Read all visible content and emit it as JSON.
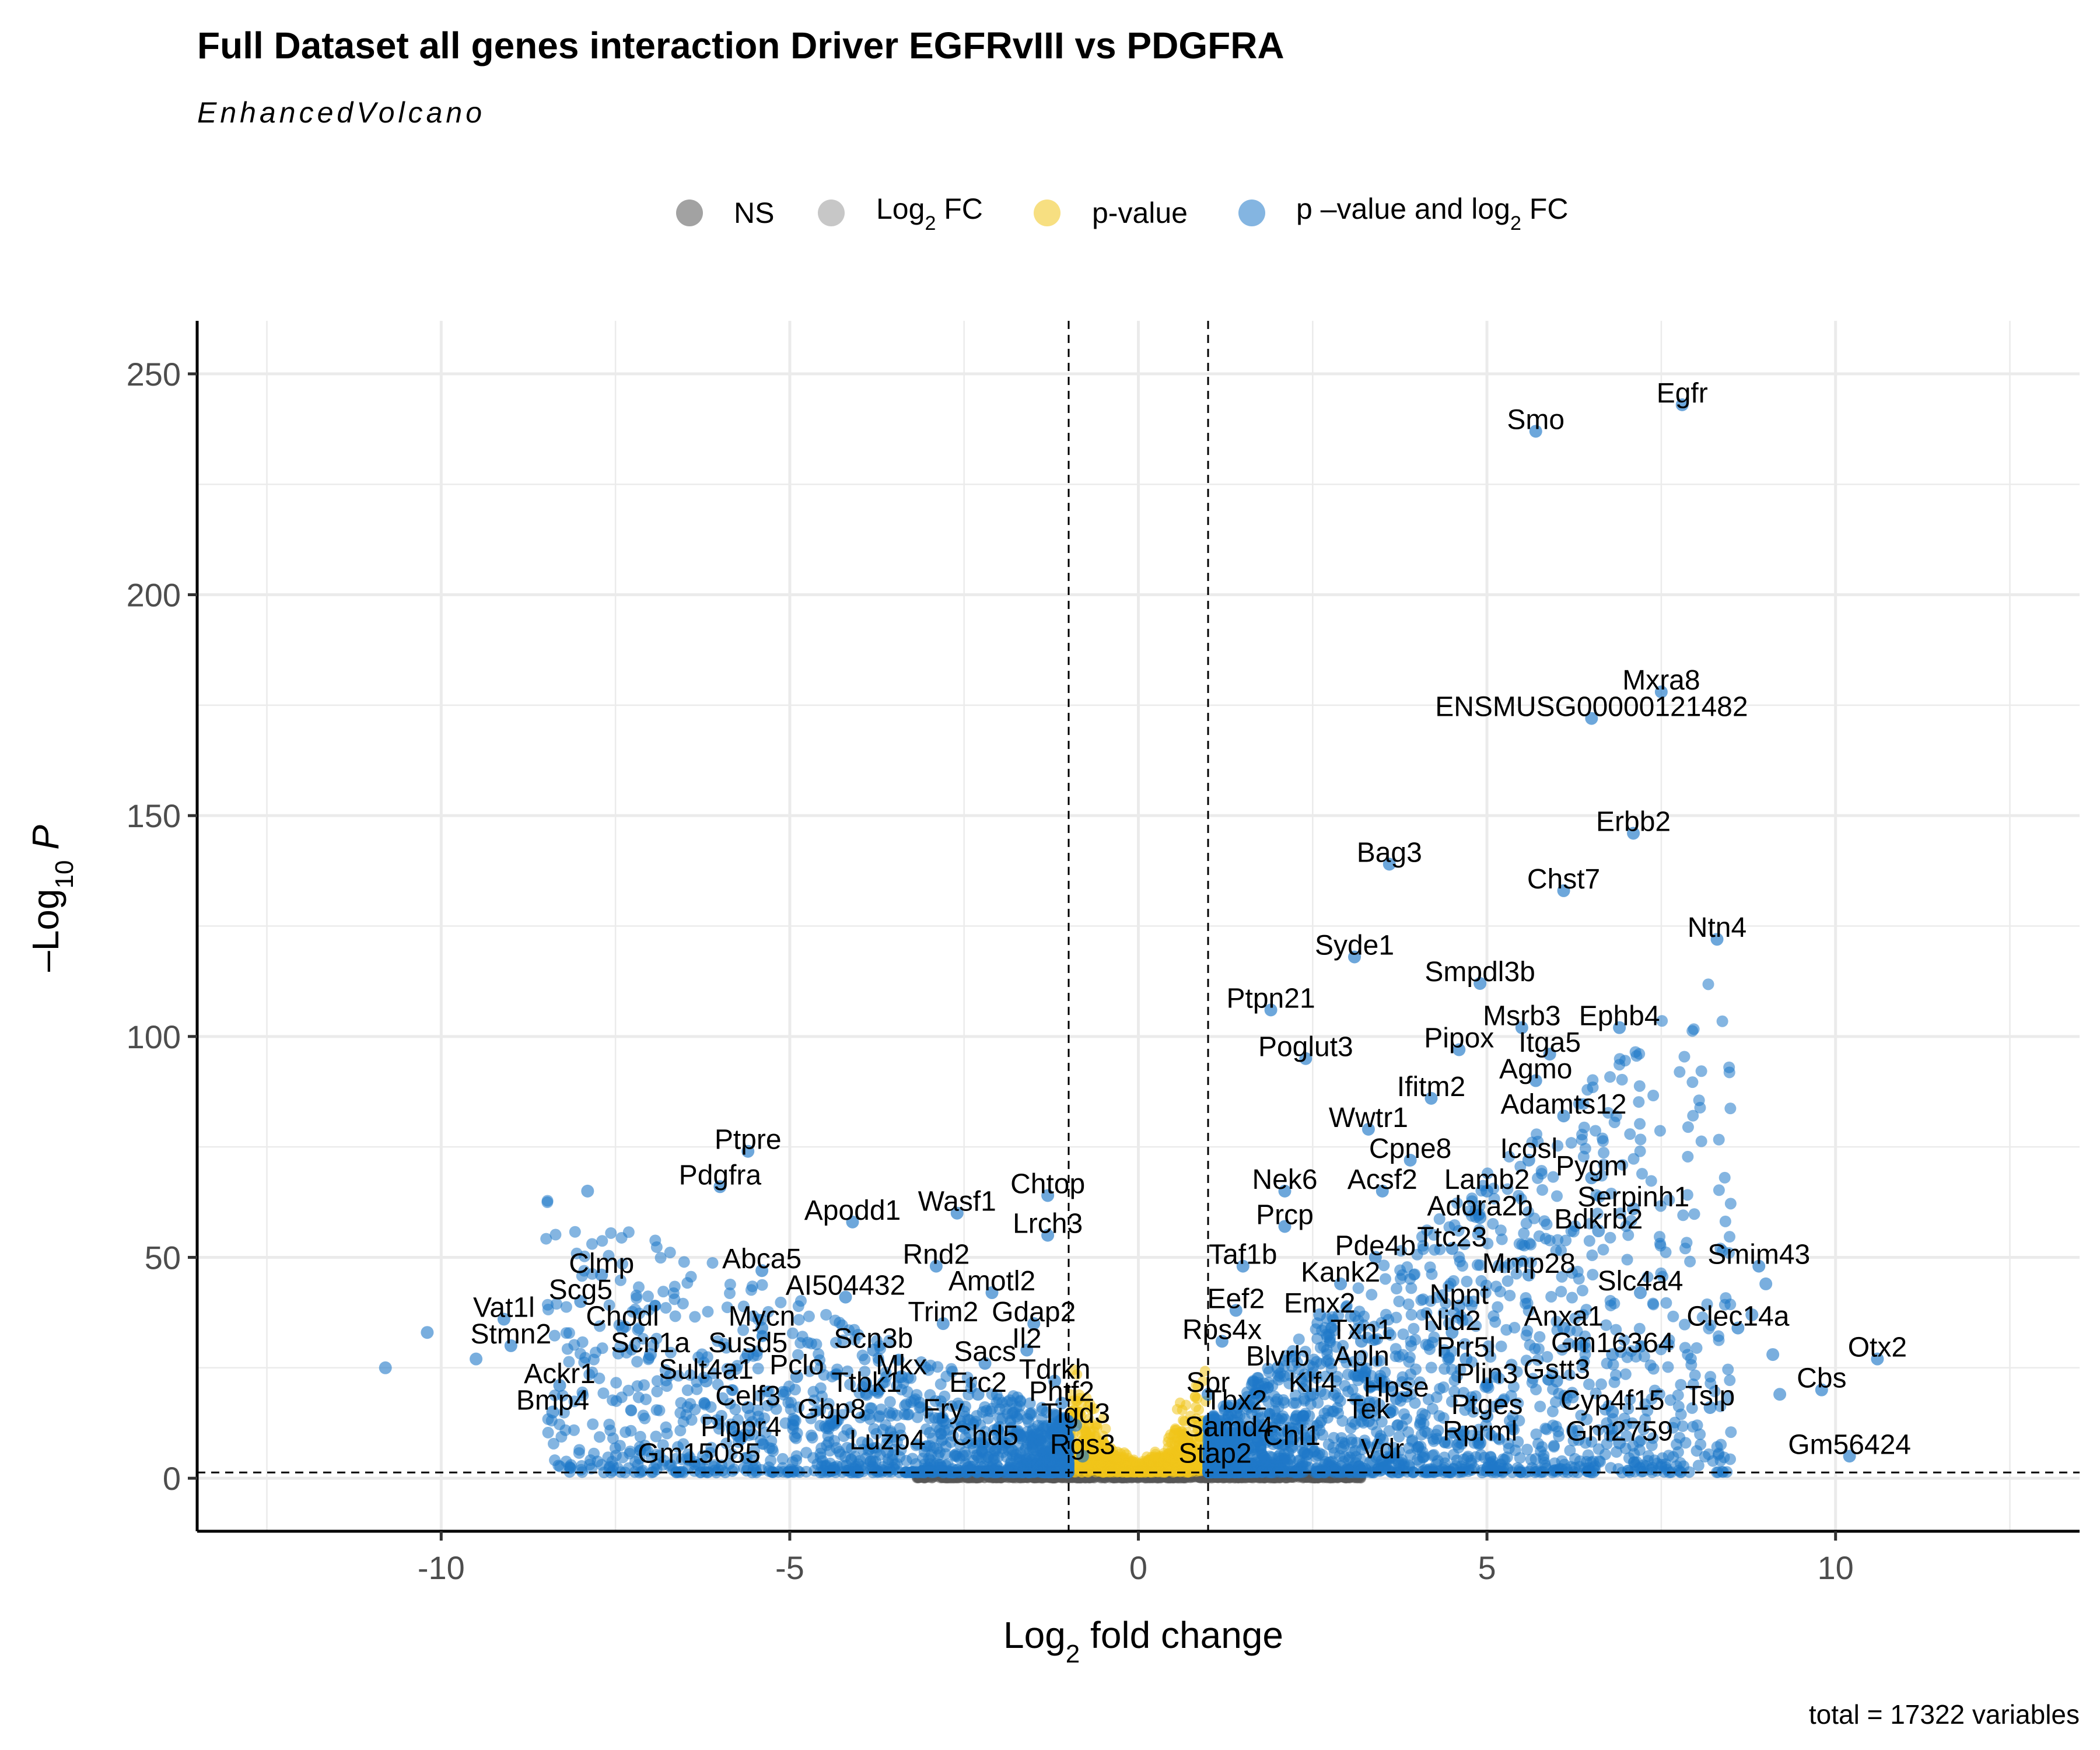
{
  "chart_data": {
    "type": "scatter",
    "title": "Full Dataset all genes interaction Driver EGFRvIII vs PDGFRA",
    "subtitle": "EnhancedVolcano",
    "xlabel": "Log2 fold change",
    "ylabel": "-Log10 P",
    "caption": "total = 17322 variables",
    "xlim": [
      -13.5,
      13.5
    ],
    "ylim": [
      -12,
      262
    ],
    "x_ticks": [
      "-10",
      "-5",
      "0",
      "5",
      "10"
    ],
    "y_ticks": [
      "0",
      "50",
      "100",
      "150",
      "200",
      "250"
    ],
    "fc_cutoff": 1,
    "p_cutoff_log10": 1.3,
    "grid": true,
    "legend_position": "top",
    "legend": [
      {
        "name": "NS",
        "color": "#555555"
      },
      {
        "name": "Log2 FC",
        "color": "#999999"
      },
      {
        "name": "p-value",
        "color": "#f0c419"
      },
      {
        "name": "p–value and log2 FC",
        "color": "#1f78c8"
      }
    ],
    "labeled_genes": [
      {
        "gene": "Egfr",
        "x": 7.8,
        "y": 243
      },
      {
        "gene": "Smo",
        "x": 5.7,
        "y": 237
      },
      {
        "gene": "Mxra8",
        "x": 7.5,
        "y": 178
      },
      {
        "gene": "ENSMUSG00000121482",
        "x": 6.5,
        "y": 172
      },
      {
        "gene": "Erbb2",
        "x": 7.1,
        "y": 146
      },
      {
        "gene": "Bag3",
        "x": 3.6,
        "y": 139
      },
      {
        "gene": "Chst7",
        "x": 6.1,
        "y": 133
      },
      {
        "gene": "Ntn4",
        "x": 8.3,
        "y": 122
      },
      {
        "gene": "Syde1",
        "x": 3.1,
        "y": 118
      },
      {
        "gene": "Smpdl3b",
        "x": 4.9,
        "y": 112
      },
      {
        "gene": "Ptpn21",
        "x": 1.9,
        "y": 106
      },
      {
        "gene": "Msrb3",
        "x": 5.5,
        "y": 102
      },
      {
        "gene": "Ephb4",
        "x": 6.9,
        "y": 102
      },
      {
        "gene": "Pipox",
        "x": 4.6,
        "y": 97
      },
      {
        "gene": "Itga5",
        "x": 5.9,
        "y": 96
      },
      {
        "gene": "Poglut3",
        "x": 2.4,
        "y": 95
      },
      {
        "gene": "Agmo",
        "x": 5.7,
        "y": 90
      },
      {
        "gene": "Ifitm2",
        "x": 4.2,
        "y": 86
      },
      {
        "gene": "Adamts12",
        "x": 6.1,
        "y": 82
      },
      {
        "gene": "Wwtr1",
        "x": 3.3,
        "y": 79
      },
      {
        "gene": "Icosl",
        "x": 5.6,
        "y": 72
      },
      {
        "gene": "Cpne8",
        "x": 3.9,
        "y": 72
      },
      {
        "gene": "Pygm",
        "x": 6.5,
        "y": 68
      },
      {
        "gene": "Nek6",
        "x": 2.1,
        "y": 65
      },
      {
        "gene": "Acsf2",
        "x": 3.5,
        "y": 65
      },
      {
        "gene": "Lamb2",
        "x": 5.0,
        "y": 65
      },
      {
        "gene": "Serpinh1",
        "x": 7.1,
        "y": 61
      },
      {
        "gene": "Adora2b",
        "x": 4.9,
        "y": 59
      },
      {
        "gene": "Prcp",
        "x": 2.1,
        "y": 57
      },
      {
        "gene": "Bdkrb2",
        "x": 6.6,
        "y": 56
      },
      {
        "gene": "Ttc23",
        "x": 4.5,
        "y": 52
      },
      {
        "gene": "Pde4b",
        "x": 3.4,
        "y": 50
      },
      {
        "gene": "Smim43",
        "x": 8.9,
        "y": 48
      },
      {
        "gene": "Taf1b",
        "x": 1.5,
        "y": 48
      },
      {
        "gene": "Mmp28",
        "x": 5.6,
        "y": 46
      },
      {
        "gene": "Kank2",
        "x": 2.9,
        "y": 44
      },
      {
        "gene": "Slc4a4",
        "x": 7.2,
        "y": 42
      },
      {
        "gene": "Npnt",
        "x": 4.6,
        "y": 39
      },
      {
        "gene": "Eef2",
        "x": 1.4,
        "y": 38
      },
      {
        "gene": "Emx2",
        "x": 2.6,
        "y": 37
      },
      {
        "gene": "Anxa1",
        "x": 6.1,
        "y": 34
      },
      {
        "gene": "Clec14a",
        "x": 8.6,
        "y": 34
      },
      {
        "gene": "Nid2",
        "x": 4.5,
        "y": 33
      },
      {
        "gene": "Rps4x",
        "x": 1.2,
        "y": 31
      },
      {
        "gene": "Txn1",
        "x": 3.2,
        "y": 31
      },
      {
        "gene": "Gm16364",
        "x": 6.8,
        "y": 28
      },
      {
        "gene": "Otx2",
        "x": 10.6,
        "y": 27
      },
      {
        "gene": "Prr5l",
        "x": 4.7,
        "y": 27
      },
      {
        "gene": "Blvrb",
        "x": 2.0,
        "y": 25
      },
      {
        "gene": "Apln",
        "x": 3.2,
        "y": 25
      },
      {
        "gene": "Gstt3",
        "x": 6.0,
        "y": 22
      },
      {
        "gene": "Plin3",
        "x": 5.0,
        "y": 21
      },
      {
        "gene": "Cbs",
        "x": 9.8,
        "y": 20
      },
      {
        "gene": "Klf4",
        "x": 2.5,
        "y": 19
      },
      {
        "gene": "Hpse",
        "x": 3.7,
        "y": 18
      },
      {
        "gene": "Spr",
        "x": 1.0,
        "y": 19
      },
      {
        "gene": "Tslp",
        "x": 8.2,
        "y": 16
      },
      {
        "gene": "Tbx2",
        "x": 1.4,
        "y": 15
      },
      {
        "gene": "Cyp4f15",
        "x": 6.8,
        "y": 15
      },
      {
        "gene": "Ptges",
        "x": 5.0,
        "y": 14
      },
      {
        "gene": "Tek",
        "x": 3.3,
        "y": 13
      },
      {
        "gene": "Samd4",
        "x": 1.3,
        "y": 9
      },
      {
        "gene": "Gm2759",
        "x": 6.9,
        "y": 8
      },
      {
        "gene": "Rprml",
        "x": 4.9,
        "y": 8
      },
      {
        "gene": "Chl1",
        "x": 2.2,
        "y": 7
      },
      {
        "gene": "Gm56424",
        "x": 10.2,
        "y": 5
      },
      {
        "gene": "Vdr",
        "x": 3.5,
        "y": 4
      },
      {
        "gene": "Stap2",
        "x": 1.1,
        "y": 3
      },
      {
        "gene": "Ptpre",
        "x": -5.6,
        "y": 74
      },
      {
        "gene": "Pdgfra",
        "x": -6.0,
        "y": 66
      },
      {
        "gene": "Chtop",
        "x": -1.3,
        "y": 64
      },
      {
        "gene": "Wasf1",
        "x": -2.6,
        "y": 60
      },
      {
        "gene": "Apodd1",
        "x": -4.1,
        "y": 58
      },
      {
        "gene": "Lrch3",
        "x": -1.3,
        "y": 55
      },
      {
        "gene": "Rnd2",
        "x": -2.9,
        "y": 48
      },
      {
        "gene": "Abca5",
        "x": -5.4,
        "y": 47
      },
      {
        "gene": "Clmp",
        "x": -7.7,
        "y": 46
      },
      {
        "gene": "Amotl2",
        "x": -2.1,
        "y": 42
      },
      {
        "gene": "AI504432",
        "x": -4.2,
        "y": 41
      },
      {
        "gene": "Scg5",
        "x": -8.0,
        "y": 40
      },
      {
        "gene": "Vat1l",
        "x": -9.1,
        "y": 36
      },
      {
        "gene": "Trim2",
        "x": -2.8,
        "y": 35
      },
      {
        "gene": "Gdap2",
        "x": -1.5,
        "y": 35
      },
      {
        "gene": "Chodl",
        "x": -7.4,
        "y": 34
      },
      {
        "gene": "Mycn",
        "x": -5.4,
        "y": 34
      },
      {
        "gene": "Stmn2",
        "x": -9.0,
        "y": 30
      },
      {
        "gene": "Il2",
        "x": -1.6,
        "y": 29
      },
      {
        "gene": "Scn3b",
        "x": -3.8,
        "y": 29
      },
      {
        "gene": "Scn1a",
        "x": -7.0,
        "y": 28
      },
      {
        "gene": "Susd5",
        "x": -5.6,
        "y": 28
      },
      {
        "gene": "Sacs",
        "x": -2.2,
        "y": 26
      },
      {
        "gene": "Sult4a1",
        "x": -6.2,
        "y": 22
      },
      {
        "gene": "Pclo",
        "x": -4.9,
        "y": 23
      },
      {
        "gene": "Mkx",
        "x": -3.4,
        "y": 23
      },
      {
        "gene": "Tdrkh",
        "x": -1.2,
        "y": 22
      },
      {
        "gene": "Ackr1",
        "x": -8.3,
        "y": 21
      },
      {
        "gene": "Ttbk1",
        "x": -3.9,
        "y": 19
      },
      {
        "gene": "Erc2",
        "x": -2.3,
        "y": 19
      },
      {
        "gene": "Phtf2",
        "x": -1.1,
        "y": 17
      },
      {
        "gene": "Celf3",
        "x": -5.6,
        "y": 16
      },
      {
        "gene": "Bmp4",
        "x": -8.4,
        "y": 15
      },
      {
        "gene": "Gbp8",
        "x": -4.4,
        "y": 13
      },
      {
        "gene": "Fry",
        "x": -2.8,
        "y": 13
      },
      {
        "gene": "Tigd3",
        "x": -0.9,
        "y": 12
      },
      {
        "gene": "Plppr4",
        "x": -5.7,
        "y": 9
      },
      {
        "gene": "Luzp4",
        "x": -3.6,
        "y": 6
      },
      {
        "gene": "Chd5",
        "x": -2.2,
        "y": 7
      },
      {
        "gene": "Rgs3",
        "x": -0.8,
        "y": 5
      },
      {
        "gene": "Gm15085",
        "x": -6.3,
        "y": 3
      }
    ],
    "extra_points": [
      {
        "x": -10.8,
        "y": 25
      },
      {
        "x": -10.2,
        "y": 33
      },
      {
        "x": -7.9,
        "y": 65
      },
      {
        "x": -9.5,
        "y": 27
      },
      {
        "x": 9.0,
        "y": 44
      },
      {
        "x": 9.1,
        "y": 28
      },
      {
        "x": 8.8,
        "y": 37
      },
      {
        "x": 9.2,
        "y": 19
      }
    ]
  }
}
